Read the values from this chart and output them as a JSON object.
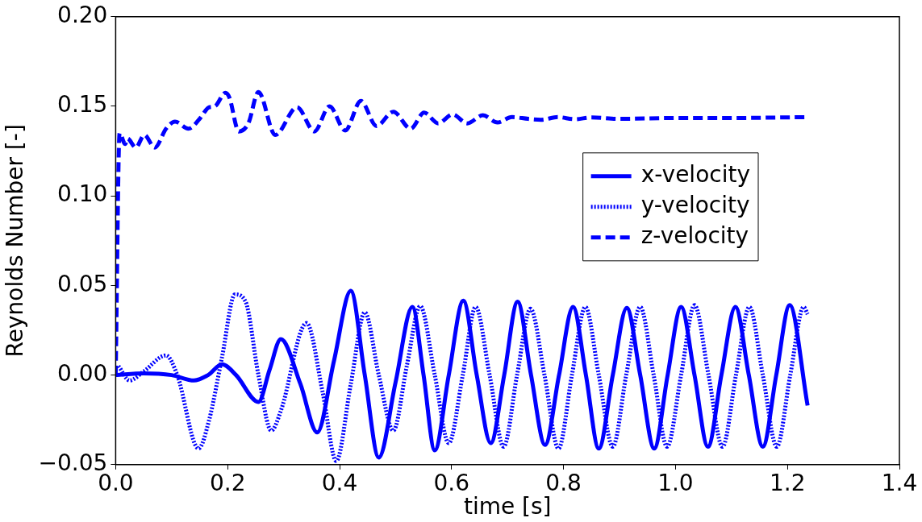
{
  "chart_data": {
    "type": "line",
    "xlabel": "time [s]",
    "ylabel": "Reynolds Number [-]",
    "xlim": [
      0,
      1.4
    ],
    "xticks": [
      {
        "value": 0,
        "label": "0.0"
      },
      {
        "value": 0.2,
        "label": "0.2"
      },
      {
        "value": 0.4,
        "label": "0.4"
      },
      {
        "value": 0.6,
        "label": "0.6"
      },
      {
        "value": 0.8,
        "label": "0.8"
      },
      {
        "value": 1.0,
        "label": "1.0"
      },
      {
        "value": 1.2,
        "label": "1.2"
      },
      {
        "value": 1.4,
        "label": "1.4"
      }
    ],
    "ylim": [
      -0.05,
      0.2
    ],
    "yticks": [
      {
        "value": -0.05,
        "label": "−0.05"
      },
      {
        "value": 0,
        "label": "0.00"
      },
      {
        "value": 0.05,
        "label": "0.05"
      },
      {
        "value": 0.1,
        "label": "0.10"
      },
      {
        "value": 0.15,
        "label": "0.15"
      },
      {
        "value": 0.2,
        "label": "0.20"
      }
    ],
    "grid": false,
    "legend": "center right",
    "marker": "none",
    "series": [
      {
        "name": "x-velocity",
        "color": "#0000ff",
        "line_style": "solid",
        "x": [
          0,
          0.05,
          0.1,
          0.14,
          0.165,
          0.19,
          0.215,
          0.255,
          0.275,
          0.295,
          0.33,
          0.36,
          0.39,
          0.42,
          0.445,
          0.47,
          0.5,
          0.53,
          0.55,
          0.57,
          0.595,
          0.621,
          0.645,
          0.67,
          0.694,
          0.718,
          0.742,
          0.767,
          0.792,
          0.817,
          0.84,
          0.863,
          0.888,
          0.913,
          0.937,
          0.962,
          0.986,
          1.01,
          1.034,
          1.058,
          1.082,
          1.107,
          1.131,
          1.156,
          1.18,
          1.204,
          1.236
        ],
        "values": [
          0,
          0.001,
          0,
          -0.003,
          0,
          0.006,
          0,
          -0.015,
          0.003,
          0.02,
          -0.005,
          -0.032,
          0.008,
          0.047,
          0,
          -0.046,
          -0.004,
          0.038,
          0,
          -0.042,
          0,
          0.0415,
          0,
          -0.038,
          0,
          0.041,
          0,
          -0.039,
          0,
          0.038,
          0,
          -0.041,
          0,
          0.0375,
          0,
          -0.041,
          0,
          0.038,
          0,
          -0.04,
          0,
          0.038,
          0,
          -0.04,
          0,
          0.039,
          -0.017
        ]
      },
      {
        "name": "y-velocity",
        "color": "#0000ff",
        "line_style": "dotted",
        "x": [
          0.005,
          0.025,
          0.05,
          0.09,
          0.11,
          0.148,
          0.167,
          0.19,
          0.213,
          0.232,
          0.255,
          0.278,
          0.295,
          0.341,
          0.37,
          0.394,
          0.42,
          0.445,
          0.47,
          0.496,
          0.52,
          0.544,
          0.57,
          0.595,
          0.62,
          0.643,
          0.668,
          0.693,
          0.717,
          0.741,
          0.766,
          0.791,
          0.815,
          0.839,
          0.863,
          0.888,
          0.912,
          0.937,
          0.961,
          0.985,
          1.01,
          1.034,
          1.059,
          1.084,
          1.108,
          1.132,
          1.156,
          1.181,
          1.205,
          1.229,
          1.236
        ],
        "values": [
          0.005,
          -0.003,
          0.002,
          0.011,
          0,
          -0.041,
          -0.025,
          0.01,
          0.045,
          0.041,
          0,
          -0.031,
          -0.02,
          0.029,
          -0.01,
          -0.048,
          -0.005,
          0.035,
          0,
          -0.031,
          0.005,
          0.0385,
          0,
          -0.038,
          0,
          0.038,
          0,
          -0.04,
          0,
          0.037,
          0,
          -0.041,
          0,
          0.038,
          0,
          -0.04,
          0,
          0.038,
          0,
          -0.04,
          0,
          0.039,
          0,
          -0.04,
          0,
          0.038,
          0,
          -0.04,
          0,
          0.038,
          0.034
        ]
      },
      {
        "name": "z-velocity",
        "color": "#0000ff",
        "line_style": "dashed",
        "x": [
          0,
          0.007,
          0.017,
          0.021,
          0.036,
          0.051,
          0.07,
          0.09,
          0.106,
          0.13,
          0.15,
          0.167,
          0.177,
          0.196,
          0.203,
          0.22,
          0.237,
          0.255,
          0.285,
          0.324,
          0.355,
          0.382,
          0.41,
          0.438,
          0.466,
          0.496,
          0.527,
          0.551,
          0.576,
          0.602,
          0.628,
          0.656,
          0.682,
          0.708,
          0.737,
          0.76,
          0.79,
          0.82,
          0.85,
          0.9,
          1.0,
          1.1,
          1.236
        ],
        "values": [
          0,
          0.135,
          0.129,
          0.132,
          0.127,
          0.134,
          0.127,
          0.1375,
          0.1415,
          0.1375,
          0.143,
          0.1495,
          0.15,
          0.1575,
          0.155,
          0.136,
          0.1405,
          0.158,
          0.134,
          0.1495,
          0.136,
          0.15,
          0.1365,
          0.153,
          0.139,
          0.147,
          0.1375,
          0.1465,
          0.1405,
          0.1455,
          0.1405,
          0.145,
          0.141,
          0.144,
          0.143,
          0.1425,
          0.144,
          0.1428,
          0.1438,
          0.143,
          0.1435,
          0.1435,
          0.144
        ]
      }
    ]
  }
}
